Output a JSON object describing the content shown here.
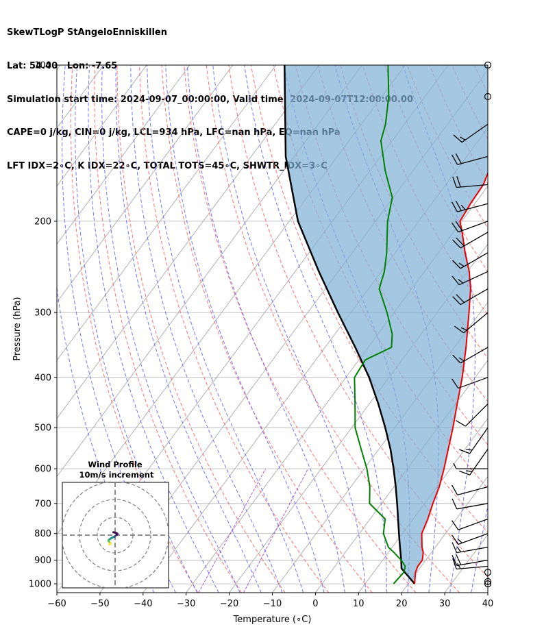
{
  "header": {
    "line1": "SkewTLogP StAngeloEnniskillen",
    "line2": "Lat: 54.40   Lon: -7.65",
    "line3": "Simulation start time: 2024-09-07_00:00:00, Valid time: 2024-09-07T12:00:00.00",
    "line4": "CAPE=0 j/kg, CIN=0 j/kg, LCL=934 hPa, LFC=nan hPa, EQ=nan hPa",
    "line5": "LFT IDX=2$^\\circ$C, K IDX=22$^\\circ$C, TOTAL TOTS=45$^\\circ$C, SHWTR_IDX=3$^\\circ$C"
  },
  "header_display": {
    "line5": "LFT IDX=2∘C, K IDX=22∘C, TOTAL TOTS=45∘C, SHWTR_IDX=3∘C"
  },
  "colors": {
    "temperature": "#ee0000",
    "dewpoint": "#008000",
    "parcel": "#000000",
    "cape_fill": "#7fb0d5",
    "dry_adiabat": "#ff5a5a",
    "moist_adiabat": "#5a5aff",
    "mixing_ratio": "#9a30c8",
    "isotherm": "#a0a0a0"
  },
  "chart_data": [
    {
      "type": "line",
      "subtype": "skew-t log-p",
      "xlabel": "Temperature ($^\\circ$C)",
      "xlabel_display": "Temperature (∘C)",
      "ylabel": "Pressure (hPa)",
      "xlim": [
        -60,
        40
      ],
      "ylim": [
        1040,
        100
      ],
      "y_scale": "log",
      "grid": true,
      "x_ticks": [
        -60,
        -50,
        -40,
        -30,
        -20,
        -10,
        0,
        10,
        20,
        30,
        40
      ],
      "x_tick_labels": [
        "−60",
        "−50",
        "−40",
        "−30",
        "−20",
        "−10",
        "0",
        "10",
        "20",
        "30",
        "40"
      ],
      "y_ticks": [
        1000,
        900,
        800,
        700,
        600,
        500,
        400,
        300,
        200,
        100
      ],
      "y_tick_labels": [
        "1000",
        "900",
        "800",
        "700",
        "600",
        "500",
        "400",
        "300",
        "200",
        "100"
      ],
      "series": [
        {
          "role": "temperature",
          "pressure": [
            1000,
            950,
            925,
            900,
            870,
            850,
            800,
            750,
            700,
            650,
            600,
            550,
            500,
            450,
            400,
            350,
            300,
            270,
            250,
            230,
            210,
            200,
            185,
            170,
            150,
            130,
            115,
            100
          ],
          "temperature": [
            21.5,
            19.7,
            19.2,
            19.2,
            18.1,
            16.9,
            14.5,
            13.4,
            11.9,
            10.5,
            8.5,
            6.1,
            3.5,
            0.4,
            -3.0,
            -7.3,
            -12.6,
            -16.3,
            -19.6,
            -23.8,
            -28.0,
            -30.4,
            -31.0,
            -31.3,
            -33.5,
            -35.0,
            -37.0,
            -40.0
          ]
        },
        {
          "role": "dewpoint",
          "pressure": [
            1000,
            950,
            925,
            900,
            870,
            850,
            800,
            750,
            700,
            650,
            600,
            550,
            500,
            450,
            400,
            370,
            350,
            330,
            300,
            270,
            250,
            230,
            210,
            200,
            180,
            160,
            140,
            130,
            115,
            100
          ],
          "temperature": [
            16.6,
            17.0,
            16.3,
            14.3,
            11.3,
            9.1,
            5.6,
            3.5,
            -2.8,
            -5.6,
            -9.4,
            -14.1,
            -19.2,
            -23.3,
            -28.0,
            -28.5,
            -24.6,
            -26.7,
            -31.6,
            -37.5,
            -39.3,
            -42.0,
            -45.4,
            -47.2,
            -50.2,
            -56.4,
            -62.6,
            -64.4,
            -68.4,
            -74.0
          ]
        },
        {
          "role": "parcel",
          "pressure": [
            1000,
            934,
            900,
            850,
            800,
            750,
            700,
            650,
            600,
            550,
            500,
            450,
            400,
            350,
            300,
            250,
            200,
            150,
            100
          ],
          "temperature": [
            21.5,
            15.8,
            14.3,
            11.8,
            9.2,
            6.5,
            3.6,
            0.4,
            -3.2,
            -7.3,
            -12.2,
            -17.9,
            -24.6,
            -33.0,
            -43.0,
            -54.5,
            -68.0,
            -82.0,
            -98.0
          ]
        }
      ],
      "cape_shading": "between parcel and temperature profile"
    },
    {
      "type": "scatter",
      "subtype": "wind barbs",
      "pressure": [
        1000,
        990,
        950,
        925,
        900,
        850,
        800,
        750,
        700,
        650,
        600,
        550,
        500,
        450,
        400,
        350,
        300,
        270,
        250,
        230,
        210,
        200,
        185,
        170,
        150,
        130,
        115,
        100
      ],
      "speed_kt": [
        0,
        0,
        0,
        15,
        20,
        15,
        15,
        10,
        10,
        10,
        5,
        15,
        15,
        10,
        10,
        15,
        15,
        20,
        15,
        15,
        20,
        20,
        25,
        20,
        20,
        15,
        0,
        0
      ],
      "direction_deg": [
        0,
        0,
        0,
        265,
        260,
        260,
        250,
        250,
        260,
        255,
        270,
        215,
        215,
        225,
        250,
        240,
        230,
        240,
        245,
        240,
        240,
        250,
        255,
        265,
        255,
        235,
        0,
        0
      ]
    },
    {
      "type": "line",
      "subtype": "hodograph",
      "title": "Wind Profile",
      "subtitle": "10m/s increment",
      "rings_ms": [
        10,
        20,
        30
      ],
      "u_ms": [
        -3.2,
        -2.8,
        -2.5,
        -2.9,
        -3.4,
        -3.8,
        -3.5,
        -3.0,
        -2.3,
        -1.4,
        -0.4,
        0.2,
        0.9,
        1.3,
        0.8,
        0.0,
        -1.0
      ],
      "v_ms": [
        -5.2,
        -5.0,
        -4.6,
        -4.2,
        -3.7,
        -3.1,
        -2.6,
        -2.3,
        -1.8,
        -1.3,
        -0.9,
        -0.4,
        0.2,
        0.6,
        1.1,
        1.4,
        1.6
      ]
    }
  ]
}
